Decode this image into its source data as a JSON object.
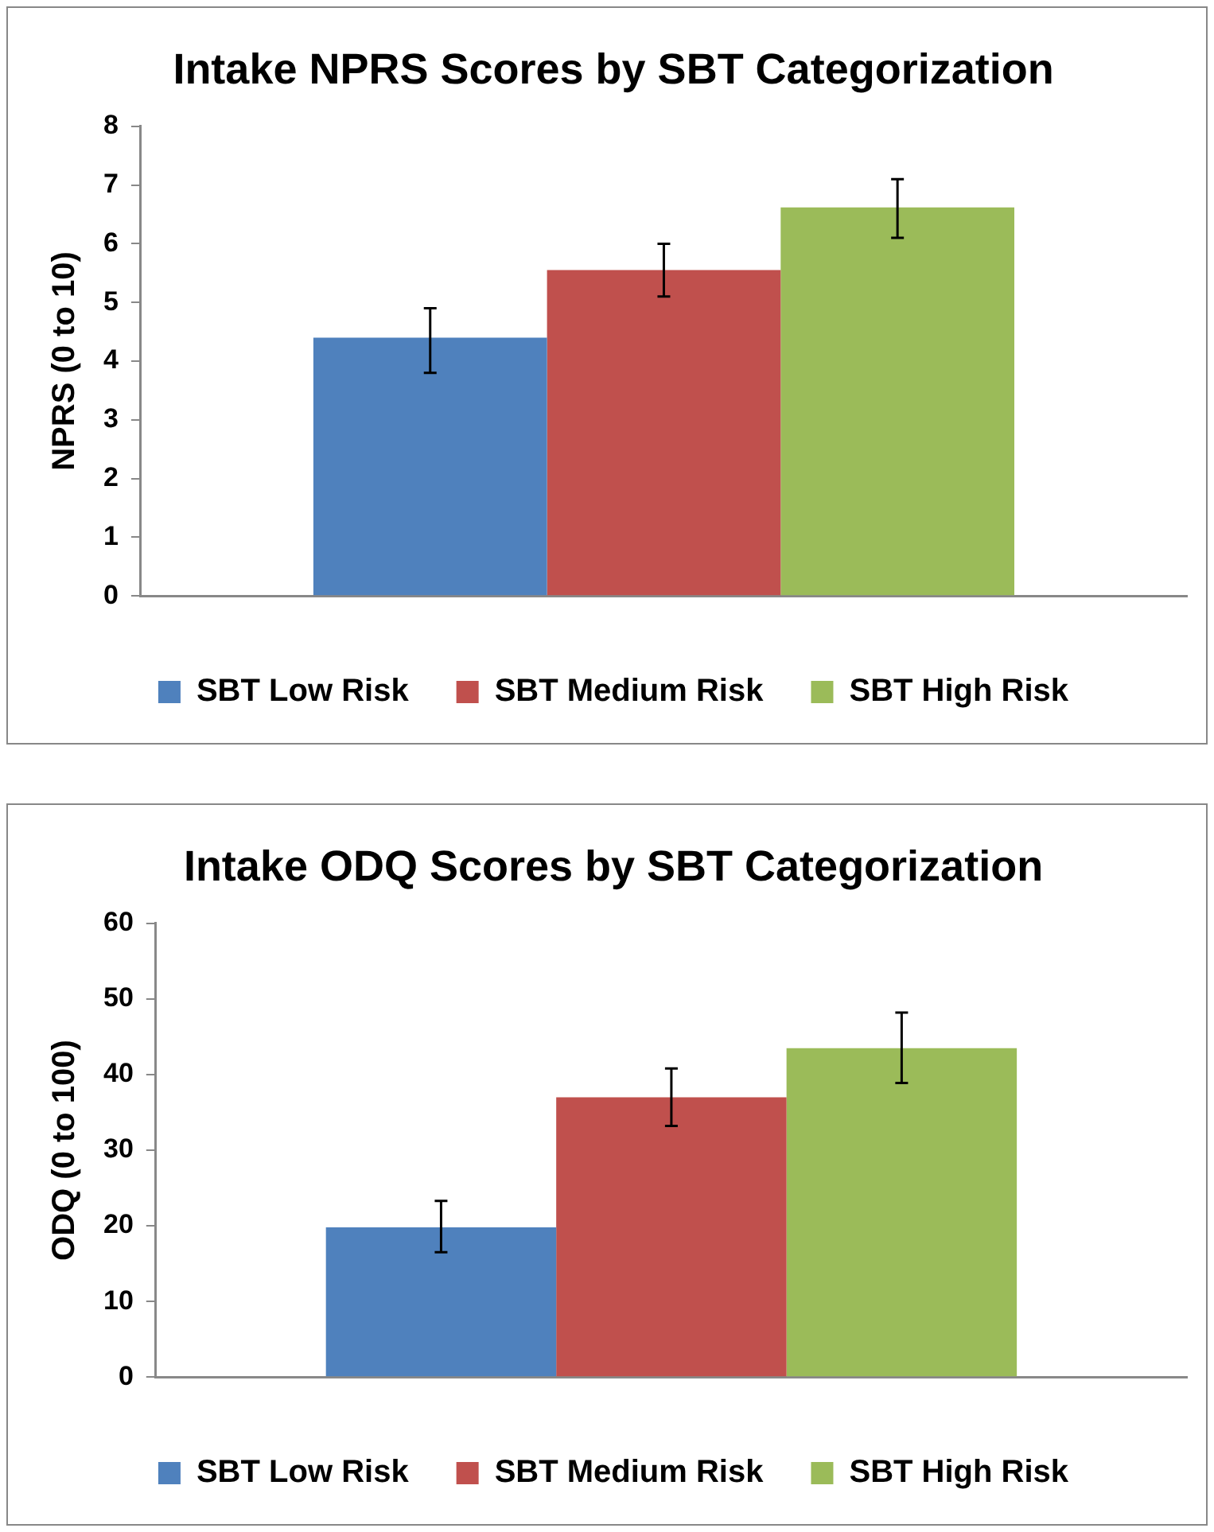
{
  "chart_data": [
    {
      "type": "bar",
      "title": "Intake NPRS Scores by SBT Categorization",
      "ylabel": "NPRS (0 to 10)",
      "categories": [
        null
      ],
      "series": [
        {
          "name": "SBT Low Risk",
          "color": "#4f81bd",
          "values": [
            4.4
          ],
          "errors": [
            [
              3.8,
              4.9
            ]
          ]
        },
        {
          "name": "SBT Medium Risk",
          "color": "#c0504d",
          "values": [
            5.55
          ],
          "errors": [
            [
              5.1,
              6.0
            ]
          ]
        },
        {
          "name": "SBT High Risk",
          "color": "#9bbb59",
          "values": [
            6.62
          ],
          "errors": [
            [
              6.1,
              7.1
            ]
          ]
        }
      ],
      "ylim": [
        0,
        8
      ],
      "yticks": [
        0,
        1,
        2,
        3,
        4,
        5,
        6,
        7,
        8
      ],
      "grid": false,
      "legend": "bottom"
    },
    {
      "type": "bar",
      "title": "Intake ODQ Scores by SBT Categorization",
      "ylabel": "ODQ (0 to 100)",
      "categories": [
        null
      ],
      "series": [
        {
          "name": "SBT Low Risk",
          "color": "#4f81bd",
          "values": [
            19.8
          ],
          "errors": [
            [
              16.5,
              23.3
            ]
          ]
        },
        {
          "name": "SBT Medium Risk",
          "color": "#c0504d",
          "values": [
            37
          ],
          "errors": [
            [
              33.2,
              40.8
            ]
          ]
        },
        {
          "name": "SBT High Risk",
          "color": "#9bbb59",
          "values": [
            43.5
          ],
          "errors": [
            [
              38.9,
              48.2
            ]
          ]
        }
      ],
      "ylim": [
        0,
        60
      ],
      "yticks": [
        0,
        10,
        20,
        30,
        40,
        50,
        60
      ],
      "grid": false,
      "legend": "bottom"
    }
  ]
}
